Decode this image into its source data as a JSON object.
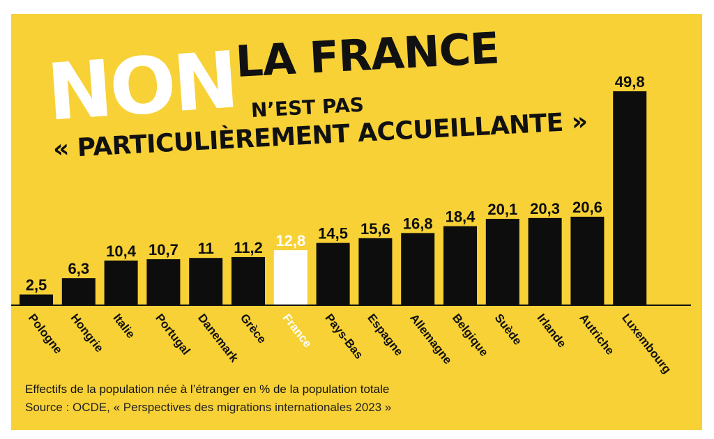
{
  "headline": {
    "non": "NON",
    "main": "LA FRANCE",
    "sub": "N’EST PAS",
    "quote": "« PARTICULIÈREMENT ACCUEILLANTE »"
  },
  "caption": "Effectifs de la population née à l’étranger en % de la population totale",
  "source": "Source : OCDE, « Perspectives des migrations internationales 2023 »",
  "colors": {
    "background": "#f7d136",
    "bar": "#0d0d0d",
    "highlight": "#ffffff"
  },
  "chart_data": {
    "type": "bar",
    "categories": [
      "Pologne",
      "Hongrie",
      "Italie",
      "Portugal",
      "Danemark",
      "Grèce",
      "France",
      "Pays-Bas",
      "Espagne",
      "Allemagne",
      "Belgique",
      "Suède",
      "Irlande",
      "Autriche",
      "Luxembourg"
    ],
    "values": [
      2.5,
      6.3,
      10.4,
      10.7,
      11,
      11.2,
      12.8,
      14.5,
      15.6,
      16.8,
      18.4,
      20.1,
      20.3,
      20.6,
      49.8
    ],
    "value_labels": [
      "2,5",
      "6,3",
      "10,4",
      "10,7",
      "11",
      "11,2",
      "12,8",
      "14,5",
      "15,6",
      "16,8",
      "18,4",
      "20,1",
      "20,3",
      "20,6",
      "49,8"
    ],
    "highlight": "France",
    "ylim": [
      0,
      49.8
    ],
    "grid": false,
    "legend": "none"
  }
}
